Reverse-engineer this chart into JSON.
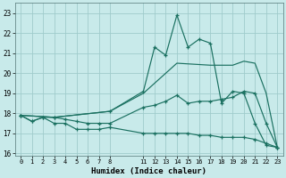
{
  "xlabel": "Humidex (Indice chaleur)",
  "background_color": "#c8eaea",
  "grid_color": "#a0cccc",
  "line_color": "#1a7060",
  "xlim": [
    -0.5,
    23.5
  ],
  "ylim": [
    15.9,
    23.5
  ],
  "yticks": [
    16,
    17,
    18,
    19,
    20,
    21,
    22,
    23
  ],
  "xticks": [
    0,
    1,
    2,
    3,
    4,
    5,
    6,
    7,
    8,
    11,
    12,
    13,
    14,
    15,
    16,
    17,
    18,
    19,
    20,
    21,
    22,
    23
  ],
  "curve_bottom_x": [
    0,
    1,
    2,
    3,
    4,
    5,
    6,
    7,
    8,
    11,
    12,
    13,
    14,
    15,
    16,
    17,
    18,
    19,
    20,
    21,
    22,
    23
  ],
  "curve_bottom_y": [
    17.9,
    17.6,
    17.8,
    17.5,
    17.5,
    17.2,
    17.2,
    17.2,
    17.3,
    17.0,
    17.0,
    17.0,
    17.0,
    17.0,
    16.9,
    16.9,
    16.8,
    16.8,
    16.8,
    16.7,
    16.5,
    16.3
  ],
  "curve_middle_x": [
    0,
    1,
    2,
    3,
    4,
    5,
    6,
    7,
    8,
    11,
    12,
    13,
    14,
    15,
    16,
    17,
    18,
    19,
    20,
    21,
    22,
    23
  ],
  "curve_middle_y": [
    17.9,
    17.6,
    17.8,
    17.8,
    17.7,
    17.6,
    17.5,
    17.5,
    17.5,
    18.3,
    18.4,
    18.6,
    18.9,
    18.5,
    18.6,
    18.6,
    18.7,
    18.8,
    19.1,
    19.0,
    17.5,
    16.3
  ],
  "curve_upper_x": [
    0,
    3,
    8,
    11,
    14,
    17,
    19,
    20,
    21,
    22,
    23
  ],
  "curve_upper_y": [
    17.9,
    17.8,
    18.1,
    19.0,
    20.5,
    20.4,
    20.4,
    20.6,
    20.5,
    19.0,
    16.3
  ],
  "curve_peak_x": [
    0,
    3,
    8,
    11,
    12,
    13,
    14,
    15,
    16,
    17,
    18,
    19,
    20,
    21,
    22,
    23
  ],
  "curve_peak_y": [
    17.9,
    17.8,
    18.1,
    19.1,
    21.3,
    20.9,
    22.9,
    21.3,
    21.7,
    21.5,
    18.5,
    19.1,
    19.0,
    17.5,
    16.4,
    16.3
  ]
}
